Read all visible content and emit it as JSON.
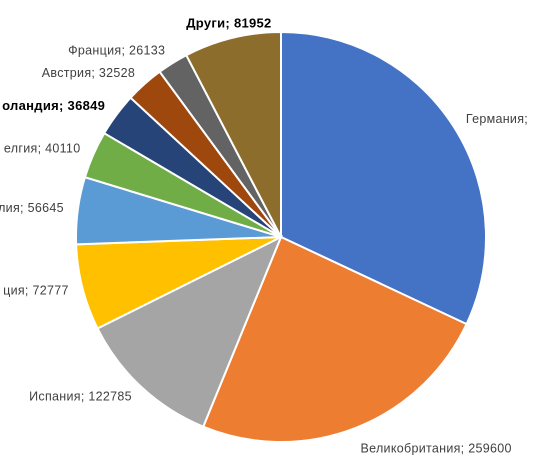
{
  "chart_data": {
    "type": "pie",
    "values": [
      343000,
      259600,
      122785,
      72777,
      56645,
      40110,
      36849,
      32528,
      26133,
      81952
    ],
    "value_labels": [
      "Германия;",
      "Великобритания; 259600",
      "Испания; 122785",
      "ция; 72777",
      "лия; 56645",
      "елгия; 40110",
      "оландия; 36849",
      "Австрия; 32528",
      "Франция; 26133",
      "Други; 81952"
    ],
    "colors": [
      "#4472c4",
      "#ed7d31",
      "#a5a5a5",
      "#ffc000",
      "#5b9bd5",
      "#70ad47",
      "#264478",
      "#9e480e",
      "#636363",
      "#8c6d2c"
    ]
  }
}
